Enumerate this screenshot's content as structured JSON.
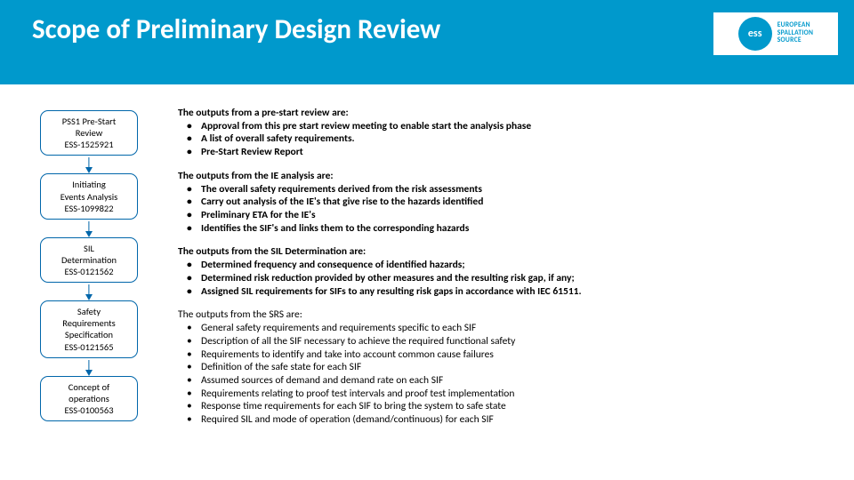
{
  "header": {
    "title": "Scope of Preliminary Design Review",
    "logo_abbrev": "ess",
    "logo_line1": "EUROPEAN",
    "logo_line2": "SPALLATION",
    "logo_line3": "SOURCE"
  },
  "flow": [
    {
      "l1": "PSS1 Pre-Start",
      "l2": "Review",
      "l3": "ESS-1525921"
    },
    {
      "l1": "Initiating",
      "l2": "Events Analysis",
      "l3": "ESS-1099822"
    },
    {
      "l1": "SIL",
      "l2": "Determination",
      "l3": "ESS-0121562"
    },
    {
      "l1": "Safety",
      "l2": "Requirements",
      "l3": "Specification",
      "l4": "ESS-0121565"
    },
    {
      "l1": "Concept of",
      "l2": "operations",
      "l3": "ESS-0100563"
    }
  ],
  "blocks": [
    {
      "head": "The outputs from a pre-start review are:",
      "bold": true,
      "items": [
        "Approval from this pre start review meeting to enable start the analysis phase",
        "A list of overall safety requirements.",
        "Pre-Start Review Report"
      ]
    },
    {
      "head": "The outputs from the IE analysis are:",
      "bold": true,
      "items": [
        "The overall safety requirements derived from the risk assessments",
        "Carry out analysis of the IE's that give rise to the hazards identified",
        "Preliminary ETA for the IE's",
        "Identifies the SIF's and links them to the corresponding hazards"
      ]
    },
    {
      "head": "The outputs from the SIL Determination are:",
      "bold": true,
      "items": [
        "Determined frequency and consequence of identified hazards;",
        "Determined risk reduction provided by other measures and the resulting risk gap, if any;",
        "Assigned SIL requirements for SIFs to any resulting risk gaps in accordance with IEC 61511."
      ]
    },
    {
      "head": "The outputs from the SRS are:",
      "bold": false,
      "items": [
        "General safety requirements and requirements specific to each SIF",
        "Description of all the SIF necessary to achieve the required functional safety",
        "Requirements to identify and take into account common cause failures",
        "Definition of the safe state for each SIF",
        "Assumed sources of demand and demand rate on each SIF",
        "Requirements relating to proof test intervals and proof test implementation",
        "Response time requirements for each SIF to bring the system to safe state",
        "Required SIL and mode of operation (demand/continuous) for each SIF"
      ]
    }
  ],
  "colors": {
    "header_bg": "#0099cc",
    "box_border": "#0066aa",
    "text": "#000000",
    "page_bg": "#ffffff"
  }
}
